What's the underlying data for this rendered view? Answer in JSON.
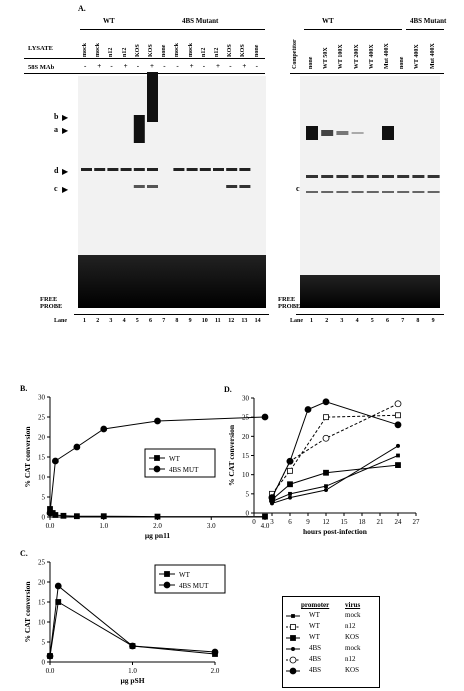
{
  "figure": {
    "panel_a_label": "A.",
    "gel1": {
      "row_lysate": "LYSATE",
      "row_mab": "58S MAb",
      "group_wt": "WT",
      "group_mut": "4BS Mutant",
      "lysates": [
        "mock",
        "mock",
        "n12",
        "n12",
        "KOS",
        "KOS",
        "none",
        "mock",
        "mock",
        "n12",
        "n12",
        "KOS",
        "KOS",
        "none"
      ],
      "mab": [
        "-",
        "+",
        "-",
        "+",
        "-",
        "+",
        "-",
        "-",
        "+",
        "-",
        "+",
        "-",
        "+",
        "-"
      ],
      "band_markers": [
        "b",
        "a",
        "d",
        "c"
      ],
      "free_probe": [
        "FREE",
        "PROBE"
      ],
      "lane_label": "Lane",
      "lanes": [
        "1",
        "2",
        "3",
        "4",
        "5",
        "6",
        "7",
        "8",
        "9",
        "10",
        "11",
        "12",
        "13",
        "14"
      ]
    },
    "gel2": {
      "competitor_label": "Competitor",
      "group_wt": "WT",
      "group_mut": "4BS Mutant",
      "competitors": [
        "none",
        "WT 50X",
        "WT 100X",
        "WT 200X",
        "WT 400X",
        "Mut 400X",
        "none",
        "WT 400X",
        "Mut 400X"
      ],
      "band_markers": [
        "c"
      ],
      "free_probe": [
        "FREE",
        "PROBE"
      ],
      "lane_label": "Lane",
      "lanes": [
        "1",
        "2",
        "3",
        "4",
        "5",
        "6",
        "7",
        "8",
        "9"
      ]
    },
    "legend_table": {
      "headers": [
        "promoter",
        "virus"
      ],
      "rows": [
        [
          "WT",
          "mock"
        ],
        [
          "WT",
          "n12"
        ],
        [
          "WT",
          "KOS"
        ],
        [
          "4BS",
          "mock"
        ],
        [
          "4BS",
          "n12"
        ],
        [
          "4BS",
          "KOS"
        ]
      ]
    }
  },
  "chart_data": [
    {
      "panel": "B.",
      "type": "line",
      "xlabel": "µg pn11",
      "ylabel": "% CAT conversion",
      "xlim": [
        0,
        4.0
      ],
      "ylim": [
        0,
        30
      ],
      "xticks": [
        "0.0",
        "1.0",
        "2.0",
        "3.0",
        "4.0"
      ],
      "yticks": [
        "0",
        "5",
        "10",
        "15",
        "20",
        "25",
        "30"
      ],
      "legend_position": "right",
      "series": [
        {
          "name": "WT",
          "marker": "square",
          "x": [
            0,
            0.05,
            0.1,
            0.25,
            0.5,
            1.0,
            2.0,
            4.0
          ],
          "y": [
            2,
            1,
            0.5,
            0.3,
            0.2,
            0.2,
            0.1,
            0.1
          ]
        },
        {
          "name": "4BS MUT",
          "marker": "circle",
          "x": [
            0,
            0.1,
            0.5,
            1.0,
            2.0,
            4.0
          ],
          "y": [
            1,
            14,
            17.5,
            22,
            24,
            25
          ]
        }
      ]
    },
    {
      "panel": "C.",
      "type": "line",
      "xlabel": "µg pSH",
      "ylabel": "% CAT conversion",
      "xlim": [
        0,
        2.0
      ],
      "ylim": [
        0,
        25
      ],
      "xticks": [
        "0.0",
        "1.0",
        "2.0"
      ],
      "yticks": [
        "0",
        "5",
        "10",
        "15",
        "20",
        "25"
      ],
      "legend_position": "top-right",
      "series": [
        {
          "name": "WT",
          "marker": "square",
          "x": [
            0,
            0.1,
            1.0,
            2.0
          ],
          "y": [
            1.5,
            15,
            4,
            2
          ]
        },
        {
          "name": "4BS MUT",
          "marker": "circle",
          "x": [
            0,
            0.1,
            1.0,
            2.0
          ],
          "y": [
            1.5,
            19,
            4,
            2.5
          ]
        }
      ]
    },
    {
      "panel": "D.",
      "type": "line",
      "xlabel": "hours post-infection",
      "ylabel": "% CAT conversion",
      "xlim": [
        0,
        27
      ],
      "ylim": [
        0,
        30
      ],
      "xticks": [
        "0",
        "3",
        "6",
        "9",
        "12",
        "15",
        "18",
        "21",
        "24",
        "27"
      ],
      "yticks": [
        "0",
        "5",
        "10",
        "15",
        "20",
        "25",
        "30"
      ],
      "series": [
        {
          "name": "WT mock",
          "marker": "square-small",
          "dash": false,
          "x": [
            3,
            6,
            12,
            24
          ],
          "y": [
            3,
            5,
            7,
            15
          ]
        },
        {
          "name": "WT n12",
          "marker": "square-open",
          "dash": true,
          "x": [
            3,
            6,
            12,
            24
          ],
          "y": [
            5,
            11,
            25,
            25.5
          ]
        },
        {
          "name": "WT KOS",
          "marker": "square-filled",
          "dash": false,
          "x": [
            3,
            6,
            12,
            24
          ],
          "y": [
            3.5,
            7.5,
            10.5,
            12.5
          ]
        },
        {
          "name": "4BS mock",
          "marker": "circle-small",
          "dash": false,
          "x": [
            3,
            6,
            12,
            24
          ],
          "y": [
            2.5,
            4,
            6,
            17.5
          ]
        },
        {
          "name": "4BS n12",
          "marker": "circle-open",
          "dash": true,
          "x": [
            3,
            6,
            12,
            24
          ],
          "y": [
            4,
            13.5,
            19.5,
            28.5
          ]
        },
        {
          "name": "4BS KOS",
          "marker": "circle-filled",
          "dash": false,
          "x": [
            3,
            6,
            9,
            12,
            24
          ],
          "y": [
            4,
            13.5,
            27,
            29,
            23
          ]
        }
      ]
    }
  ]
}
